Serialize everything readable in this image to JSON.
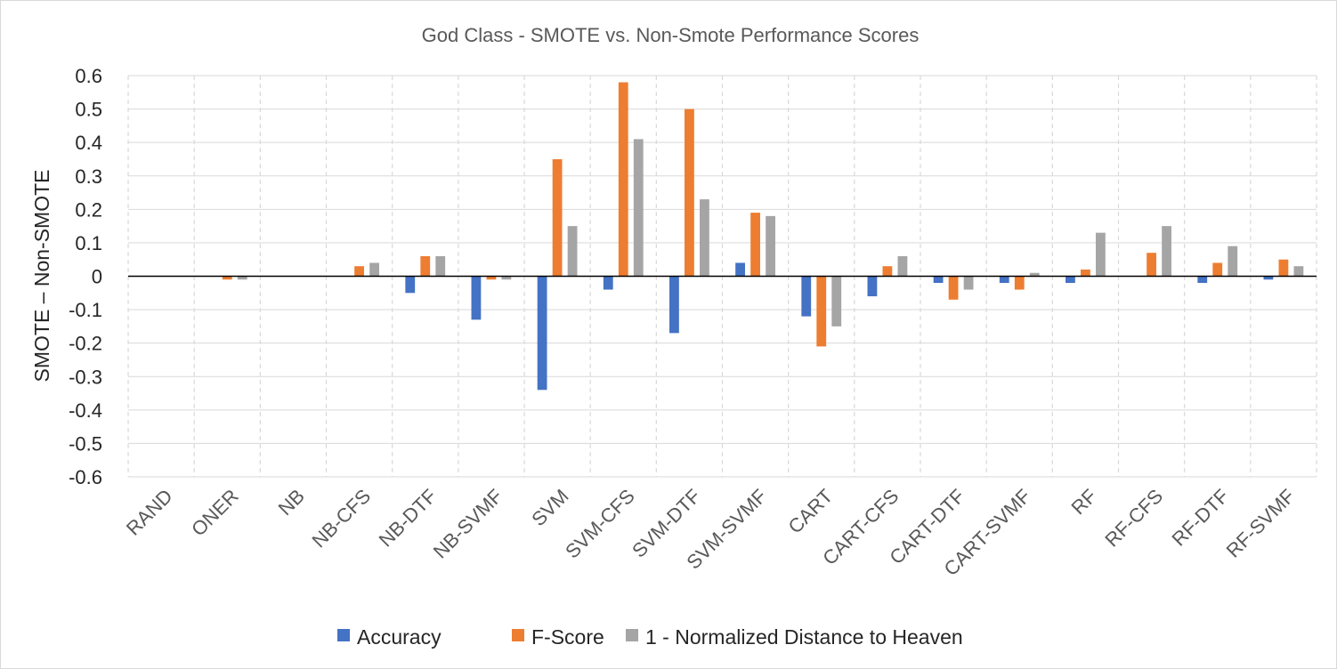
{
  "chart_data": {
    "type": "bar",
    "title": "God Class - SMOTE vs. Non-Smote Performance Scores",
    "xlabel": "",
    "ylabel": "SMOTE – Non-SMOTE",
    "ylim": [
      -0.6,
      0.6
    ],
    "yticks": [
      "0.6",
      "0.5",
      "0.4",
      "0.3",
      "0.2",
      "0.1",
      "0",
      "-0.1",
      "-0.2",
      "-0.3",
      "-0.4",
      "-0.5",
      "-0.6"
    ],
    "grid": true,
    "legend_position": "bottom",
    "categories": [
      "RAND",
      "ONER",
      "NB",
      "NB-CFS",
      "NB-DTF",
      "NB-SVMF",
      "SVM",
      "SVM-CFS",
      "SVM-DTF",
      "SVM-SVMF",
      "CART",
      "CART-CFS",
      "CART-DTF",
      "CART-SVMF",
      "RF",
      "RF-CFS",
      "RF-DTF",
      "RF-SVMF"
    ],
    "series": [
      {
        "name": "Accuracy",
        "color": "#4472C4",
        "values": [
          0,
          0,
          0,
          0,
          -0.05,
          -0.13,
          -0.34,
          -0.04,
          -0.17,
          0.04,
          -0.12,
          -0.06,
          -0.02,
          -0.02,
          -0.02,
          0,
          -0.02,
          -0.01
        ]
      },
      {
        "name": "F-Score",
        "color": "#ED7D31",
        "values": [
          0,
          -0.01,
          0,
          0.03,
          0.06,
          -0.01,
          0.35,
          0.58,
          0.5,
          0.19,
          -0.21,
          0.03,
          -0.07,
          -0.04,
          0.02,
          0.07,
          0.04,
          0.05
        ]
      },
      {
        "name": "1 - Normalized Distance to Heaven",
        "color": "#A5A5A5",
        "values": [
          0,
          -0.01,
          0,
          0.04,
          0.06,
          -0.01,
          0.15,
          0.41,
          0.23,
          0.18,
          -0.15,
          0.06,
          -0.04,
          0.01,
          0.13,
          0.15,
          0.09,
          0.03
        ]
      }
    ]
  }
}
